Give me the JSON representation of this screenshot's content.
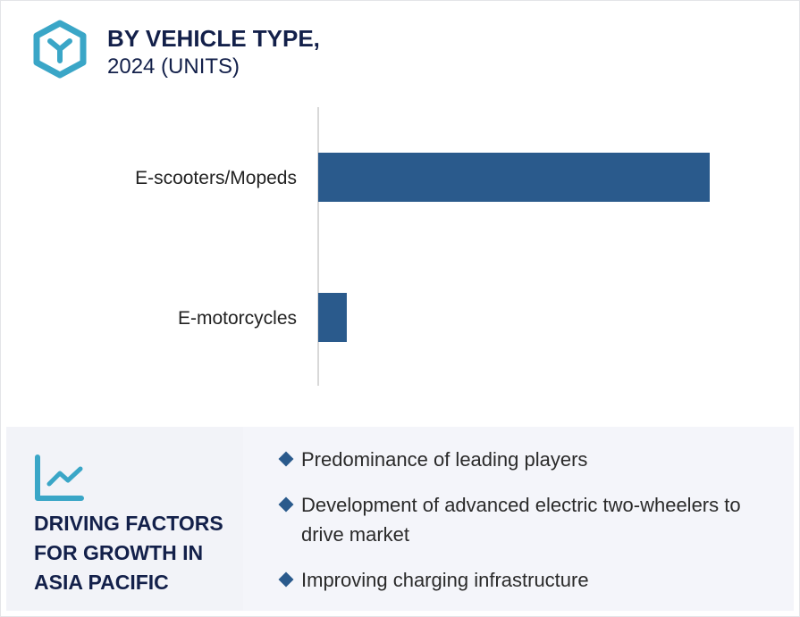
{
  "header": {
    "title_line1": "BY VEHICLE TYPE,",
    "title_line2": "2024 (UNITS)",
    "icon": "hexagon-y-icon"
  },
  "chart_data": {
    "type": "bar",
    "orientation": "horizontal",
    "categories": [
      "E-scooters/Mopeds",
      "E-motorcycles"
    ],
    "values": [
      100,
      7.3
    ],
    "title": "BY VEHICLE TYPE, 2024 (UNITS)",
    "xlabel": "",
    "ylabel": "",
    "grid": false,
    "colors": {
      "bar": "#2a5a8c",
      "axis": "#cccccc"
    }
  },
  "panel": {
    "icon": "line-chart-icon",
    "title": "DRIVING FACTORS FOR GROWTH IN ASIA PACIFIC",
    "bullets": [
      "Predominance of leading players",
      "Development of advanced electric two-wheelers to drive market",
      "Improving charging infrastructure"
    ]
  },
  "colors": {
    "accent": "#3aa6c7",
    "navy": "#13204a",
    "bar": "#2a5a8c",
    "panel_bg": "#f4f5fa"
  }
}
